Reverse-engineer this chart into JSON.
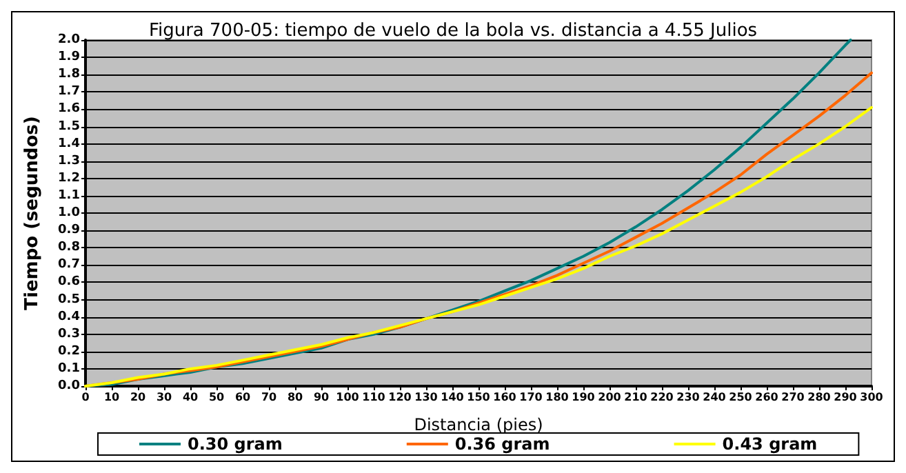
{
  "chart_data": {
    "type": "line",
    "title": "Figura 700-05: tiempo de vuelo de la bola vs. distancia a 4.55 Julios",
    "xlabel": "Distancia (pies)",
    "ylabel": "Tiempo (segundos)",
    "xlim": [
      0,
      300
    ],
    "xticks": [
      0,
      10,
      20,
      30,
      40,
      50,
      60,
      70,
      80,
      90,
      100,
      110,
      120,
      130,
      140,
      150,
      160,
      170,
      180,
      190,
      200,
      210,
      220,
      230,
      240,
      250,
      260,
      270,
      280,
      290,
      300
    ],
    "ylim": [
      0,
      2
    ],
    "yticks": [
      {
        "value": 0,
        "label": "0.0"
      },
      0.1,
      0.2,
      0.3,
      0.4,
      0.5,
      0.6,
      0.7,
      0.8,
      0.9,
      {
        "value": 1,
        "label": "1.0"
      },
      1.1,
      1.2,
      1.3,
      1.4,
      1.5,
      1.6,
      1.7,
      1.8,
      1.9,
      {
        "value": 2,
        "label": "2.0"
      }
    ],
    "grid": "y",
    "legend": "bottom",
    "marker": "none",
    "line_style": "solid",
    "series": [
      {
        "name": "0.30 gram",
        "color": "#008080",
        "x": [
          0,
          10,
          20,
          30,
          40,
          50,
          60,
          70,
          80,
          90,
          100,
          110,
          120,
          130,
          140,
          150,
          160,
          170,
          180,
          190,
          200,
          210,
          220,
          230,
          240,
          250,
          260,
          270,
          280,
          290,
          292
        ],
        "values": [
          0,
          0.01,
          0.04,
          0.06,
          0.08,
          0.11,
          0.13,
          0.16,
          0.19,
          0.22,
          0.27,
          0.3,
          0.34,
          0.39,
          0.44,
          0.49,
          0.55,
          0.61,
          0.68,
          0.75,
          0.83,
          0.92,
          1.02,
          1.13,
          1.25,
          1.38,
          1.52,
          1.66,
          1.81,
          1.97,
          2.0
        ]
      },
      {
        "name": "0.36 gram",
        "color": "#ff6600",
        "x": [
          0,
          10,
          20,
          30,
          40,
          50,
          60,
          70,
          80,
          90,
          100,
          110,
          120,
          130,
          140,
          150,
          160,
          170,
          180,
          190,
          200,
          210,
          220,
          230,
          240,
          250,
          260,
          270,
          280,
          290,
          300
        ],
        "values": [
          0,
          0.02,
          0.04,
          0.07,
          0.09,
          0.11,
          0.14,
          0.17,
          0.2,
          0.23,
          0.27,
          0.31,
          0.34,
          0.39,
          0.43,
          0.48,
          0.53,
          0.58,
          0.64,
          0.71,
          0.78,
          0.86,
          0.94,
          1.03,
          1.12,
          1.22,
          1.34,
          1.45,
          1.56,
          1.68,
          1.81
        ]
      },
      {
        "name": "0.43 gram",
        "color": "#ffff00",
        "x": [
          0,
          10,
          20,
          30,
          40,
          50,
          60,
          70,
          80,
          90,
          100,
          110,
          120,
          130,
          140,
          150,
          160,
          170,
          180,
          190,
          200,
          210,
          220,
          230,
          240,
          250,
          260,
          270,
          280,
          290,
          300
        ],
        "values": [
          0,
          0.02,
          0.05,
          0.07,
          0.1,
          0.12,
          0.15,
          0.18,
          0.21,
          0.24,
          0.28,
          0.31,
          0.35,
          0.39,
          0.43,
          0.47,
          0.52,
          0.57,
          0.62,
          0.68,
          0.75,
          0.81,
          0.88,
          0.96,
          1.04,
          1.12,
          1.21,
          1.31,
          1.4,
          1.5,
          1.61
        ]
      }
    ]
  }
}
